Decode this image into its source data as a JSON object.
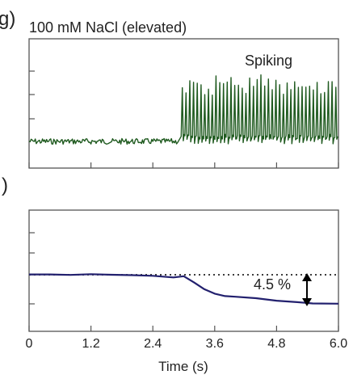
{
  "panel_g": {
    "letter": "g)",
    "title": "100 mM NaCl (elevated)",
    "annotation": "Spiking"
  },
  "panel_h": {
    "letter": ")",
    "annotation": "4.5 %"
  },
  "colors": {
    "spiking_trace": "#1f5a1f",
    "fluorescence_trace": "#22206e",
    "axis": "#333333"
  },
  "chart_data": [
    {
      "type": "line",
      "title": "100 mM NaCl (elevated)",
      "xlabel": "",
      "ylabel": "",
      "xlim": [
        0,
        6.0
      ],
      "grid": false,
      "annotations": [
        "Spiking"
      ],
      "series": [
        {
          "baseline_until_s": 2.9,
          "spiking_from_s": 2.95,
          "spike_count": 42,
          "x": [
            0,
            0.5,
            1.0,
            1.5,
            2.0,
            2.5,
            2.9,
            2.95,
            3.5,
            4.0,
            4.5,
            5.0,
            5.5,
            6.0
          ],
          "y": [
            0,
            0,
            0,
            0,
            0,
            0,
            0,
            1,
            1,
            1,
            1,
            1,
            1,
            1
          ]
        }
      ]
    },
    {
      "type": "line",
      "xlabel": "Time (s)",
      "ylabel": "",
      "xlim": [
        0,
        6.0
      ],
      "xticks": [
        "0",
        "1.2",
        "2.4",
        "3.6",
        "4.8",
        "6.0"
      ],
      "grid": false,
      "reference_line": "dotted baseline",
      "annotations": [
        "4.5 %"
      ],
      "series": [
        {
          "x": [
            0,
            0.4,
            0.8,
            1.2,
            1.6,
            2.0,
            2.4,
            2.8,
            3.0,
            3.2,
            3.4,
            3.6,
            3.8,
            4.0,
            4.4,
            4.8,
            5.2,
            5.5,
            6.0
          ],
          "y": [
            0,
            0.05,
            -0.05,
            0.05,
            0,
            -0.05,
            -0.2,
            -0.4,
            -0.2,
            -1.2,
            -2.3,
            -3.0,
            -3.3,
            -3.4,
            -3.7,
            -4.0,
            -4.3,
            -4.5,
            -4.5
          ]
        }
      ]
    }
  ]
}
